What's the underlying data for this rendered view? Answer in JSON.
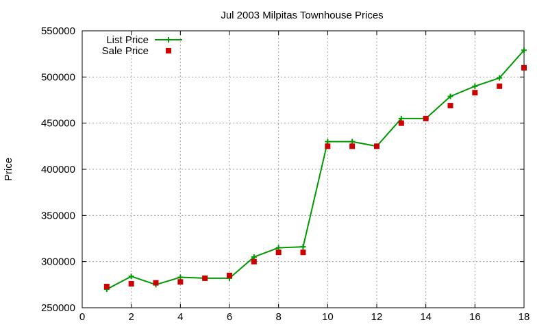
{
  "chart_data": {
    "type": "line",
    "title": "Jul 2003 Milpitas Townhouse Prices",
    "xlabel": "",
    "ylabel": "Price",
    "xlim": [
      0,
      18
    ],
    "ylim": [
      250000,
      550000
    ],
    "xticks": [
      0,
      2,
      4,
      6,
      8,
      10,
      12,
      14,
      16,
      18
    ],
    "yticks": [
      250000,
      300000,
      350000,
      400000,
      450000,
      500000,
      550000
    ],
    "grid": true,
    "legend_position": "top-left",
    "series": [
      {
        "name": "List Price",
        "style": "line-with-plus-markers",
        "color": "#009900",
        "x": [
          1,
          2,
          3,
          4,
          5,
          6,
          7,
          8,
          9,
          10,
          11,
          12,
          13,
          14,
          15,
          16,
          17,
          18
        ],
        "y": [
          270000,
          284000,
          275000,
          283000,
          282000,
          282000,
          305000,
          315000,
          316000,
          430000,
          430000,
          425000,
          455000,
          455000,
          479000,
          490000,
          499000,
          529000
        ]
      },
      {
        "name": "Sale Price",
        "style": "square-markers",
        "color": "#cc0000",
        "x": [
          1,
          2,
          3,
          4,
          5,
          6,
          7,
          8,
          9,
          10,
          11,
          12,
          13,
          14,
          15,
          16,
          17,
          18
        ],
        "y": [
          273000,
          276000,
          277000,
          278000,
          282000,
          285000,
          300000,
          310000,
          310000,
          425000,
          425000,
          425000,
          450000,
          455000,
          469000,
          483000,
          490000,
          510000
        ]
      }
    ]
  }
}
